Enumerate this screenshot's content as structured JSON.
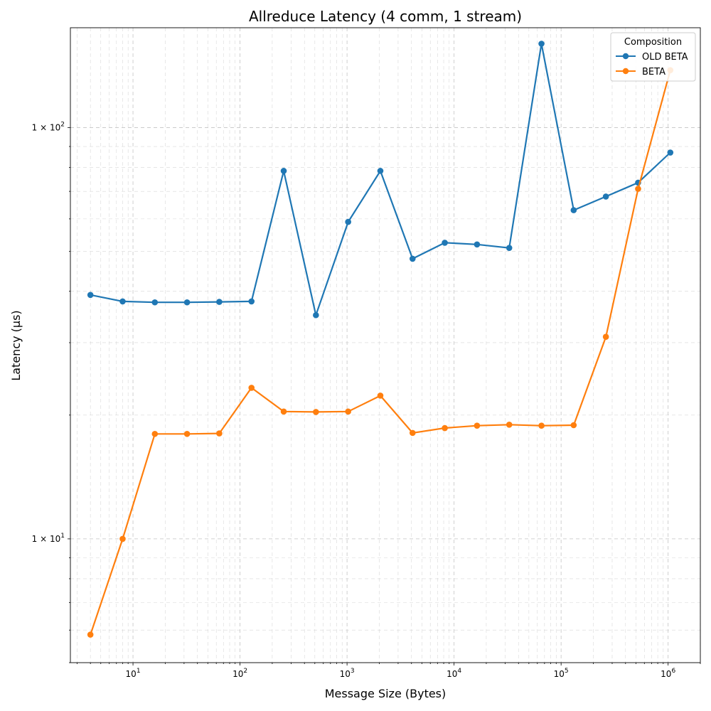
{
  "chart_data": {
    "type": "line",
    "title": "Allreduce Latency (4 comm, 1 stream)",
    "xlabel": "Message Size (Bytes)",
    "ylabel": "Latency (µs)",
    "xscale": "log",
    "yscale": "log",
    "xlim": [
      2.6,
      2000000
    ],
    "ylim": [
      5.0,
      175
    ],
    "grid": true,
    "legend": {
      "title": "Composition",
      "position": "top-right"
    },
    "x": [
      4,
      8,
      16,
      32,
      64,
      128,
      256,
      512,
      1024,
      2048,
      4096,
      8192,
      16384,
      32768,
      65536,
      131072,
      262144,
      524288,
      1048576
    ],
    "x_ticks": [
      {
        "value": 10,
        "label": "10^1"
      },
      {
        "value": 100,
        "label": "10^2"
      },
      {
        "value": 1000,
        "label": "10^3"
      },
      {
        "value": 10000,
        "label": "10^4"
      },
      {
        "value": 100000,
        "label": "10^5"
      },
      {
        "value": 1000000,
        "label": "10^6"
      }
    ],
    "y_ticks": [
      {
        "value": 10,
        "label": "1 × 10^1"
      },
      {
        "value": 100,
        "label": "1 × 10^2"
      }
    ],
    "series": [
      {
        "name": "OLD BETA",
        "color": "#1f77b4",
        "values": [
          39.2,
          37.8,
          37.6,
          37.6,
          37.7,
          37.8,
          78.5,
          35.0,
          59.0,
          78.5,
          48.0,
          52.5,
          52.0,
          51.0,
          160.0,
          63.0,
          68.0,
          73.5,
          87.0
        ]
      },
      {
        "name": "BETA",
        "color": "#ff7f0e",
        "values": [
          5.85,
          10.0,
          18.0,
          18.0,
          18.05,
          23.3,
          20.4,
          20.35,
          20.4,
          22.3,
          18.1,
          18.6,
          18.85,
          18.95,
          18.85,
          18.9,
          31.0,
          71.0,
          138.0
        ]
      }
    ]
  }
}
